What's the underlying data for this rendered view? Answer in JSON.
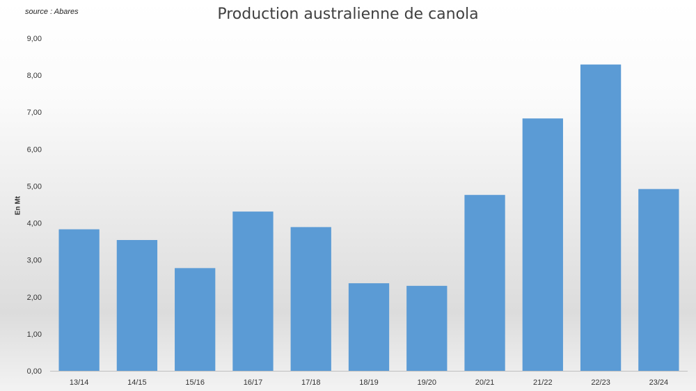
{
  "source_note": "source : Abares",
  "chart_data": {
    "type": "bar",
    "title": "Production australienne de canola",
    "xlabel": "",
    "ylabel": "En Mt",
    "categories": [
      "13/14",
      "14/15",
      "15/16",
      "16/17",
      "17/18",
      "18/19",
      "19/20",
      "20/21",
      "21/22",
      "22/23",
      "23/24"
    ],
    "values": [
      3.83,
      3.54,
      2.78,
      4.31,
      3.89,
      2.37,
      2.3,
      4.76,
      6.83,
      8.29,
      4.92
    ],
    "ylim": [
      0,
      9
    ],
    "yticks": [
      "0,00",
      "1,00",
      "2,00",
      "3,00",
      "4,00",
      "5,00",
      "6,00",
      "7,00",
      "8,00",
      "9,00"
    ],
    "bar_color": "#5B9BD5",
    "grid": false,
    "legend": "none"
  }
}
